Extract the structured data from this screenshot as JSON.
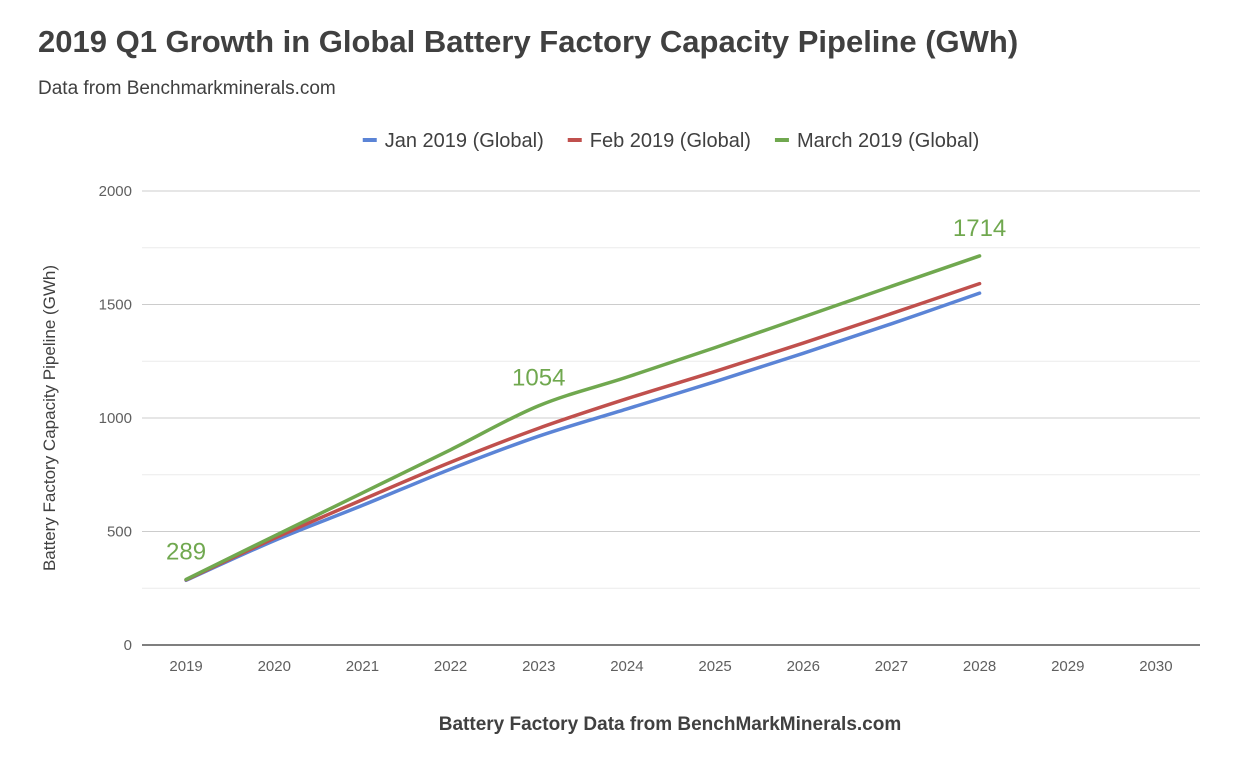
{
  "chart_data": {
    "type": "line",
    "title": "2019 Q1 Growth in Global Battery Factory Capacity Pipeline (GWh)",
    "subtitle": "Data from Benchmarkminerals.com",
    "xlabel": "Battery Factory Data from BenchMarkMinerals.com",
    "ylabel": "Battery Factory Capacity Pipeline (GWh)",
    "x": [
      "2019",
      "2020",
      "2021",
      "2022",
      "2023",
      "2024",
      "2025",
      "2026",
      "2027",
      "2028",
      "2029",
      "2030"
    ],
    "ylim": [
      0,
      2000
    ],
    "yticks": [
      0,
      500,
      1000,
      1500,
      2000
    ],
    "grid": true,
    "legend_position": "top-center",
    "series": [
      {
        "name": "Jan 2019 (Global)",
        "color": "#5b84d6",
        "values": [
          285,
          460,
          615,
          775,
          920,
          1040,
          1160,
          1285,
          1415,
          1550,
          null,
          null
        ]
      },
      {
        "name": "Feb 2019 (Global)",
        "color": "#c0504d",
        "values": [
          287,
          470,
          640,
          805,
          955,
          1085,
          1205,
          1330,
          1460,
          1592,
          null,
          null
        ]
      },
      {
        "name": "March 2019 (Global)",
        "color": "#70a84f",
        "values": [
          289,
          480,
          670,
          860,
          1054,
          1180,
          1310,
          1445,
          1580,
          1714,
          null,
          null
        ]
      }
    ],
    "annotations": [
      {
        "series": 2,
        "index": 0,
        "text": "289"
      },
      {
        "series": 2,
        "index": 4,
        "text": "1054"
      },
      {
        "series": 2,
        "index": 9,
        "text": "1714"
      }
    ]
  }
}
